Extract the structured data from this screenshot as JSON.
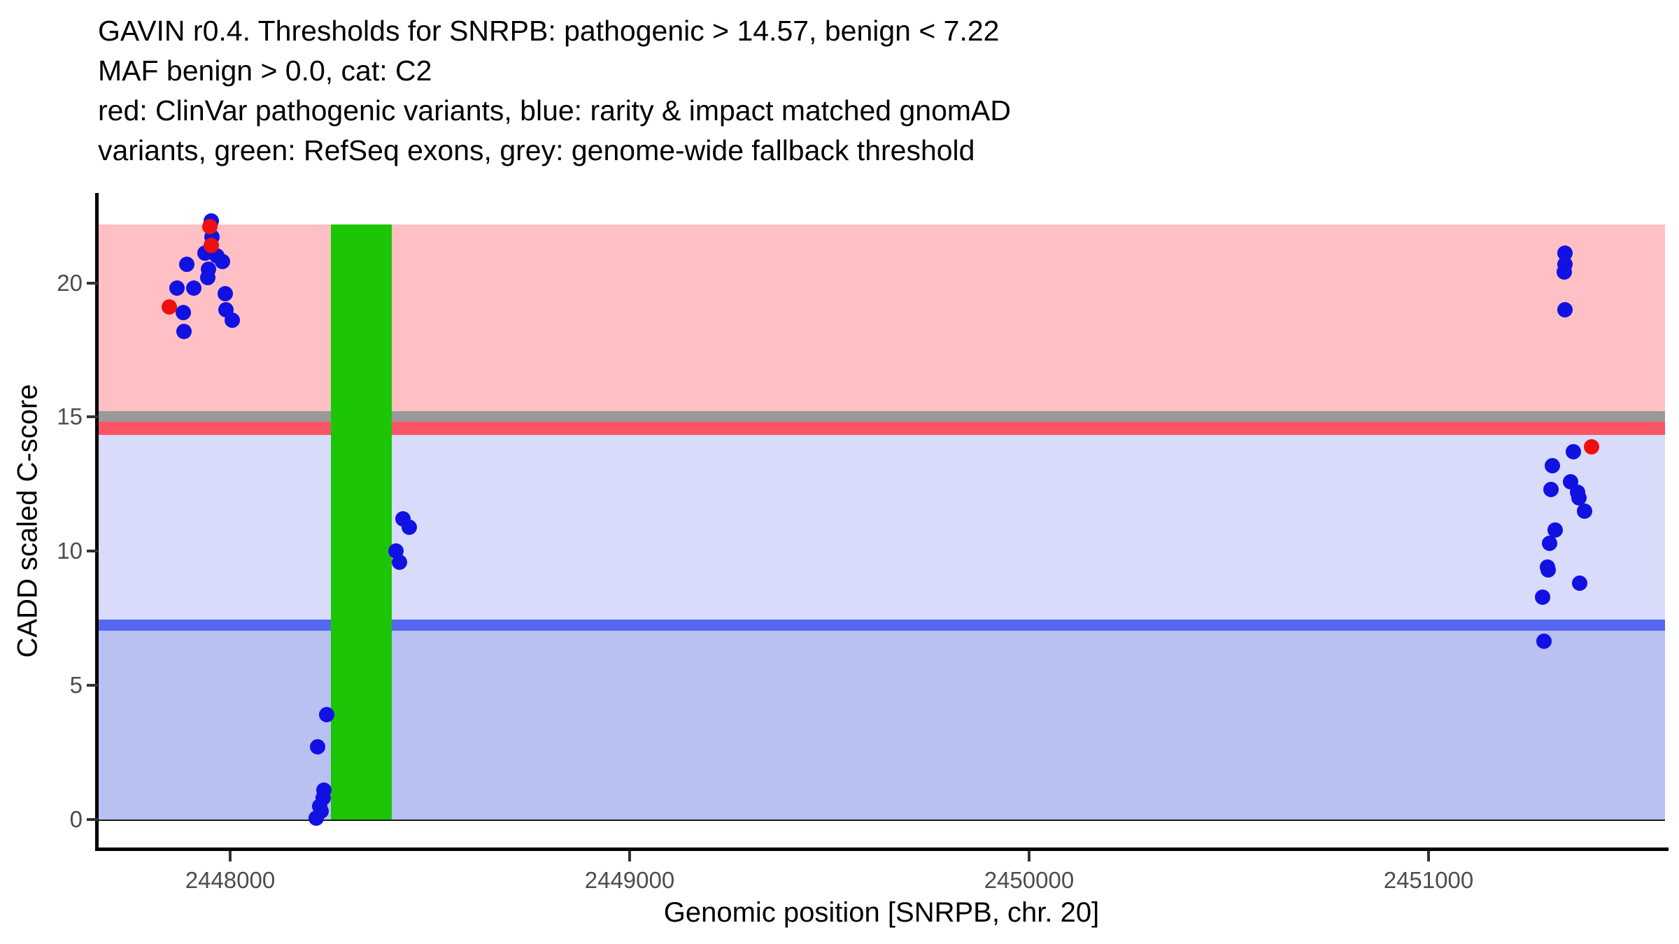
{
  "title": {
    "line1": "GAVIN r0.4. Thresholds for SNRPB: pathogenic > 14.57, benign < 7.22",
    "line2": "MAF benign > 0.0, cat: C2",
    "line3": "red: ClinVar pathogenic variants, blue: rarity & impact matched gnomAD",
    "line4": "variants, green: RefSeq exons, grey: genome-wide fallback threshold"
  },
  "colors": {
    "pathogenic_region": "#FFC0C5",
    "fallback_band": "#999999",
    "pathogenic_threshold_band": "#FA5564",
    "vus_region": "#D8DCFA",
    "benign_threshold_line": "#5569F0",
    "benign_region": "#B9C0F2",
    "exon": "#1CC607",
    "clinvar_dot": "#EE1010",
    "gnomad_dot": "#1111E2",
    "axis": "#000000",
    "tick_text": "#4d4d4d"
  },
  "chart_data": {
    "type": "scatter",
    "title": "GAVIN r0.4. Thresholds for SNRPB: pathogenic > 14.57, benign < 7.22 / MAF benign > 0.0, cat: C2 / red: ClinVar pathogenic variants, blue: rarity & impact matched gnomAD variants, green: RefSeq exons, grey: genome-wide fallback threshold",
    "xlabel": "Genomic position [SNRPB, chr. 20]",
    "ylabel": "CADD scaled C-score",
    "xlim": [
      2447669,
      2451592
    ],
    "ylim": [
      0,
      23.3
    ],
    "x_ticks": [
      2448000,
      2449000,
      2450000,
      2451000
    ],
    "y_ticks": [
      0,
      5,
      10,
      15,
      20
    ],
    "grid": false,
    "legend_position": "none",
    "thresholds": {
      "pathogenic": 14.57,
      "benign": 7.22,
      "maf_benign": 0.0,
      "category": "C2",
      "fallback": 15.0
    },
    "bands": [
      {
        "name": "pathogenic-region",
        "from": 15.23,
        "to": 22.18,
        "color_key": "pathogenic_region"
      },
      {
        "name": "fallback-threshold-band",
        "from": 14.83,
        "to": 15.23,
        "color_key": "fallback_band"
      },
      {
        "name": "pathogenic-threshold-band",
        "from": 14.34,
        "to": 14.83,
        "color_key": "pathogenic_threshold_band"
      },
      {
        "name": "vus-region",
        "from": 7.45,
        "to": 14.34,
        "color_key": "vus_region"
      },
      {
        "name": "benign-threshold-line",
        "from": 7.04,
        "to": 7.45,
        "color_key": "benign_threshold_line"
      },
      {
        "name": "benign-region",
        "from": 0,
        "to": 7.04,
        "color_key": "benign_region"
      }
    ],
    "exons": [
      {
        "x_from": 2448252,
        "x_to": 2448405,
        "y_from": 0,
        "y_to": 22.18
      }
    ],
    "series": [
      {
        "name": "rarity & impact matched gnomAD variants",
        "color_key": "gnomad_dot",
        "points": [
          [
            2447953,
            22.3
          ],
          [
            2447954,
            21.7
          ],
          [
            2447937,
            21.1
          ],
          [
            2447967,
            21.0
          ],
          [
            2447981,
            20.8
          ],
          [
            2447891,
            20.7
          ],
          [
            2447946,
            20.5
          ],
          [
            2447944,
            20.2
          ],
          [
            2447867,
            19.8
          ],
          [
            2447909,
            19.8
          ],
          [
            2447988,
            19.6
          ],
          [
            2447989,
            19.0
          ],
          [
            2447883,
            18.9
          ],
          [
            2448005,
            18.6
          ],
          [
            2447884,
            18.2
          ],
          [
            2448242,
            3.9
          ],
          [
            2448219,
            2.7
          ],
          [
            2448235,
            1.1
          ],
          [
            2448233,
            0.8
          ],
          [
            2448224,
            0.5
          ],
          [
            2448228,
            0.3
          ],
          [
            2448215,
            0.05
          ],
          [
            2448433,
            11.2
          ],
          [
            2448448,
            10.9
          ],
          [
            2448415,
            10.0
          ],
          [
            2448424,
            9.6
          ],
          [
            2451341,
            21.1
          ],
          [
            2451341,
            20.7
          ],
          [
            2451340,
            20.4
          ],
          [
            2451341,
            19.0
          ],
          [
            2451362,
            13.7
          ],
          [
            2451310,
            13.2
          ],
          [
            2451355,
            12.6
          ],
          [
            2451306,
            12.3
          ],
          [
            2451373,
            12.2
          ],
          [
            2451376,
            12.0
          ],
          [
            2451390,
            11.5
          ],
          [
            2451317,
            10.8
          ],
          [
            2451303,
            10.3
          ],
          [
            2451297,
            9.4
          ],
          [
            2451299,
            9.3
          ],
          [
            2451378,
            8.8
          ],
          [
            2451285,
            8.3
          ],
          [
            2451289,
            6.65
          ]
        ]
      },
      {
        "name": "ClinVar pathogenic variants",
        "color_key": "clinvar_dot",
        "points": [
          [
            2447949,
            22.1
          ],
          [
            2447953,
            21.4
          ],
          [
            2447848,
            19.1
          ],
          [
            2451408,
            13.9
          ]
        ]
      }
    ]
  }
}
